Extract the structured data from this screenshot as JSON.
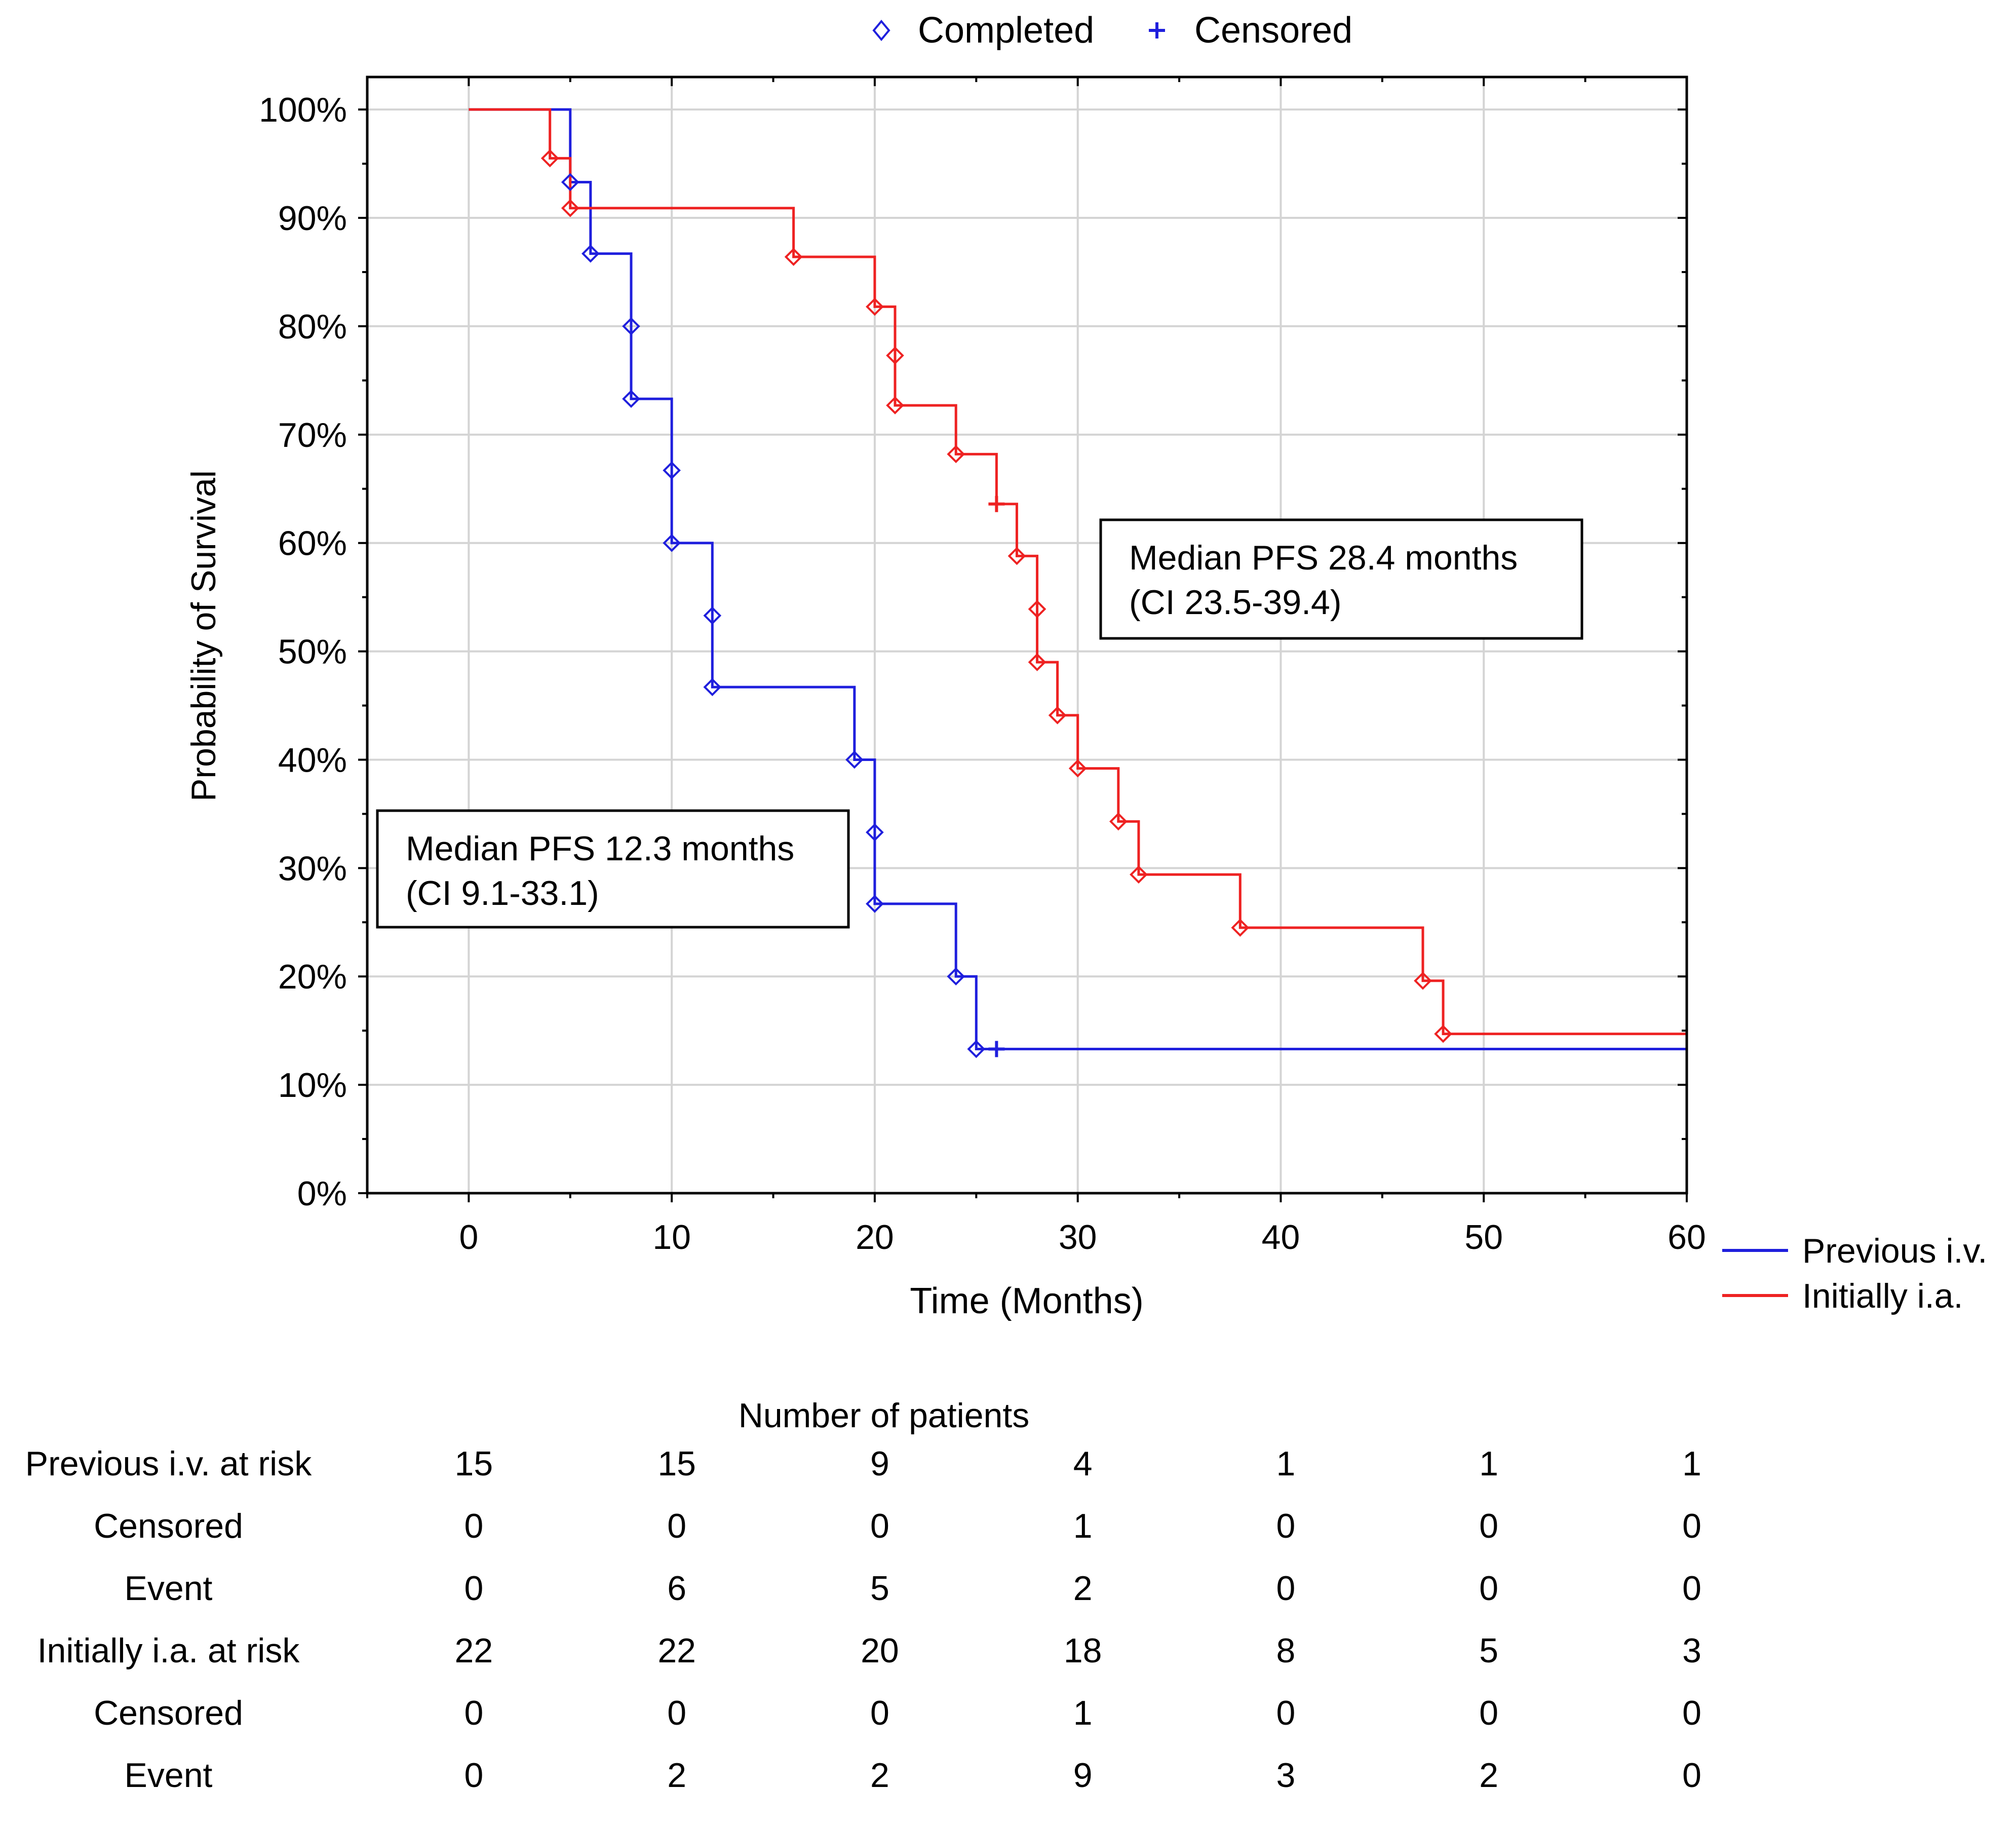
{
  "chart_data": {
    "type": "line",
    "subtype": "kaplan-meier step",
    "xlabel": "Time (Months)",
    "ylabel": "Probability of Survival",
    "xlim": [
      -5,
      60
    ],
    "ylim": [
      0,
      1.03
    ],
    "xticks": [
      0,
      10,
      20,
      30,
      40,
      50,
      60
    ],
    "xtick_labels": [
      "0",
      "10",
      "20",
      "30",
      "40",
      "50",
      "60"
    ],
    "yticks": [
      0,
      0.1,
      0.2,
      0.3,
      0.4,
      0.5,
      0.6,
      0.7,
      0.8,
      0.9,
      1.0
    ],
    "ytick_labels": [
      "0%",
      "10%",
      "20%",
      "30%",
      "40%",
      "50%",
      "60%",
      "70%",
      "80%",
      "90%",
      "100%"
    ],
    "grid": true,
    "marker_legend": [
      {
        "label": "Completed",
        "marker": "diamond"
      },
      {
        "label": "Censored",
        "marker": "plus"
      }
    ],
    "series": [
      {
        "name": "Previous i.v.",
        "color": "#1f1fdd",
        "x": [
          0,
          5,
          5,
          6,
          6,
          8,
          8,
          10,
          10,
          12,
          12,
          19,
          19,
          20,
          20,
          24,
          24,
          25,
          25,
          60
        ],
        "y": [
          1.0,
          1.0,
          0.933,
          0.933,
          0.867,
          0.867,
          0.733,
          0.733,
          0.6,
          0.6,
          0.467,
          0.467,
          0.4,
          0.4,
          0.267,
          0.267,
          0.2,
          0.2,
          0.133,
          0.133
        ],
        "events": [
          [
            5,
            0.933
          ],
          [
            6,
            0.867
          ],
          [
            8,
            0.8
          ],
          [
            8,
            0.733
          ],
          [
            10,
            0.667
          ],
          [
            10,
            0.6
          ],
          [
            12,
            0.533
          ],
          [
            12,
            0.467
          ],
          [
            19,
            0.4
          ],
          [
            20,
            0.333
          ],
          [
            20,
            0.267
          ],
          [
            24,
            0.2
          ],
          [
            25,
            0.133
          ]
        ],
        "censored": [
          [
            26,
            0.133
          ]
        ]
      },
      {
        "name": "Initially i.a.",
        "color": "#ee2222",
        "x": [
          0,
          4,
          4,
          5,
          5,
          16,
          16,
          20,
          20,
          21,
          21,
          24,
          24,
          26,
          26,
          27,
          27,
          28,
          28,
          29,
          29,
          30,
          30,
          32,
          32,
          33,
          33,
          38,
          38,
          47,
          47,
          48,
          48,
          60
        ],
        "y": [
          1.0,
          1.0,
          0.955,
          0.955,
          0.909,
          0.909,
          0.864,
          0.864,
          0.818,
          0.818,
          0.727,
          0.727,
          0.682,
          0.682,
          0.636,
          0.636,
          0.588,
          0.588,
          0.49,
          0.49,
          0.441,
          0.441,
          0.392,
          0.392,
          0.343,
          0.343,
          0.294,
          0.294,
          0.245,
          0.245,
          0.196,
          0.196,
          0.147,
          0.147
        ],
        "events": [
          [
            4,
            0.955
          ],
          [
            5,
            0.909
          ],
          [
            16,
            0.864
          ],
          [
            20,
            0.818
          ],
          [
            21,
            0.773
          ],
          [
            21,
            0.727
          ],
          [
            24,
            0.682
          ],
          [
            27,
            0.588
          ],
          [
            28,
            0.539
          ],
          [
            28,
            0.49
          ],
          [
            29,
            0.441
          ],
          [
            30,
            0.392
          ],
          [
            32,
            0.343
          ],
          [
            33,
            0.294
          ],
          [
            38,
            0.245
          ],
          [
            47,
            0.196
          ],
          [
            48,
            0.147
          ]
        ],
        "censored": [
          [
            26,
            0.636
          ]
        ]
      }
    ],
    "annotations": [
      {
        "line1": "Median PFS 28.4 months",
        "line2": "(CI 23.5-39.4)"
      },
      {
        "line1": "Median PFS 12.3 months",
        "line2": "(CI 9.1-33.1)"
      }
    ],
    "legend_position": "bottom-right",
    "marker_legend_position": "top-center"
  },
  "risk_table": {
    "title": "Number of patients",
    "rows": [
      {
        "label": "Previous i.v. at risk",
        "values": [
          "15",
          "15",
          "9",
          "4",
          "1",
          "1",
          "1"
        ]
      },
      {
        "label": "Censored",
        "values": [
          "0",
          "0",
          "0",
          "1",
          "0",
          "0",
          "0"
        ]
      },
      {
        "label": "Event",
        "values": [
          "0",
          "6",
          "5",
          "2",
          "0",
          "0",
          "0"
        ]
      },
      {
        "label": "Initially i.a. at risk",
        "values": [
          "22",
          "22",
          "20",
          "18",
          "8",
          "5",
          "3"
        ]
      },
      {
        "label": "Censored",
        "values": [
          "0",
          "0",
          "0",
          "1",
          "0",
          "0",
          "0"
        ]
      },
      {
        "label": "Event",
        "values": [
          "0",
          "2",
          "2",
          "9",
          "3",
          "2",
          "0"
        ]
      }
    ]
  }
}
